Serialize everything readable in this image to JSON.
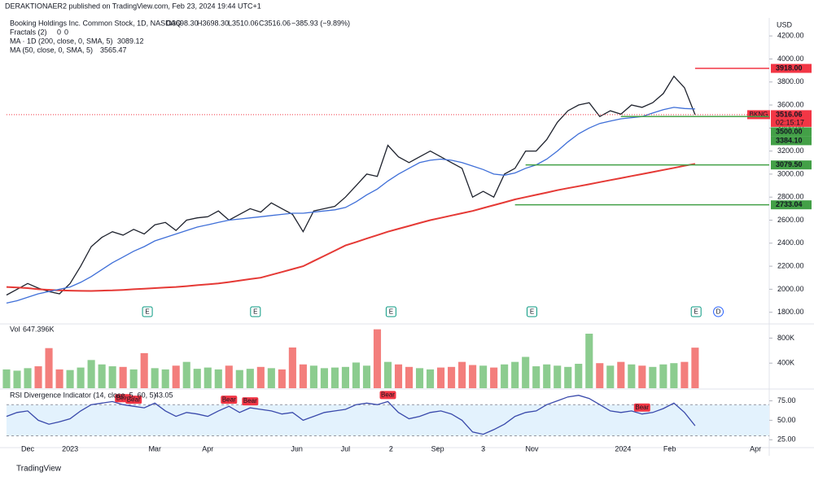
{
  "header": {
    "published": "DERAKTIONAER2 published on TradingView.com, Feb 23, 2024 19:44 UTC+1",
    "brand": "TradingView"
  },
  "chart_data": [
    {
      "type": "line",
      "title": "Booking Holdings Inc. Common Stock, 1D, NASDAQ",
      "quote": [
        "O3698.30",
        "H3698.30",
        "L3510.06",
        "C3516.06",
        "−385.93 (−9.89%)"
      ],
      "fractals": {
        "name": "Fractals (2)",
        "values": [
          0,
          0
        ]
      },
      "currency": "USD",
      "x": [
        0,
        1,
        2,
        3,
        4,
        5,
        6,
        7,
        8,
        9,
        10,
        11,
        12,
        13,
        14,
        15,
        16,
        17,
        18,
        19,
        20,
        21,
        22,
        23,
        24,
        25,
        26,
        27,
        28,
        29,
        30,
        31,
        32,
        33,
        34,
        35,
        36,
        37,
        38,
        39,
        40,
        41,
        42,
        43,
        44,
        45,
        46,
        47,
        48,
        49,
        50,
        51,
        52,
        53,
        54,
        55,
        56,
        57,
        58,
        59,
        60,
        61,
        62,
        63,
        64,
        65
      ],
      "series": [
        {
          "color": "#1e222d",
          "values": [
            1950,
            2000,
            2050,
            2010,
            1980,
            1960,
            2050,
            2200,
            2370,
            2450,
            2500,
            2470,
            2520,
            2480,
            2560,
            2580,
            2510,
            2600,
            2620,
            2630,
            2680,
            2600,
            2650,
            2700,
            2670,
            2750,
            2700,
            2650,
            2500,
            2680,
            2700,
            2720,
            2800,
            2900,
            3000,
            2980,
            3250,
            3150,
            3100,
            3150,
            3200,
            3150,
            3100,
            3050,
            2800,
            2850,
            2800,
            3000,
            3050,
            3200,
            3200,
            3300,
            3450,
            3550,
            3600,
            3620,
            3500,
            3550,
            3520,
            3600,
            3580,
            3620,
            3700,
            3850,
            3750,
            3516.06
          ]
        },
        {
          "name": "MA · 1D (200, close, 0, SMA, 5)",
          "last_label": "3089.12",
          "color": "#e53935",
          "values": [
            2020,
            2015,
            2010,
            2000,
            1995,
            1990,
            1988,
            1986,
            1985,
            1988,
            1990,
            1994,
            2000,
            2005,
            2010,
            2015,
            2020,
            2027,
            2035,
            2042,
            2050,
            2062,
            2075,
            2088,
            2100,
            2125,
            2150,
            2175,
            2200,
            2245,
            2290,
            2335,
            2380,
            2410,
            2440,
            2470,
            2500,
            2525,
            2550,
            2575,
            2600,
            2620,
            2640,
            2660,
            2680,
            2705,
            2730,
            2755,
            2780,
            2800,
            2820,
            2840,
            2860,
            2878,
            2895,
            2912,
            2930,
            2948,
            2965,
            2983,
            3000,
            3018,
            3036,
            3054,
            3072,
            3089.12
          ]
        },
        {
          "name": "MA (50, close, 0, SMA, 5)",
          "last_label": "3565.47",
          "color": "#3f6fd8",
          "values": [
            1880,
            1900,
            1930,
            1960,
            1980,
            2000,
            2020,
            2060,
            2110,
            2170,
            2230,
            2280,
            2330,
            2370,
            2420,
            2450,
            2480,
            2510,
            2540,
            2560,
            2580,
            2600,
            2610,
            2620,
            2630,
            2640,
            2650,
            2660,
            2660,
            2670,
            2680,
            2690,
            2710,
            2760,
            2820,
            2870,
            2940,
            3000,
            3050,
            3100,
            3120,
            3130,
            3120,
            3100,
            3070,
            3040,
            3000,
            2990,
            3010,
            3050,
            3080,
            3130,
            3200,
            3280,
            3350,
            3400,
            3440,
            3460,
            3480,
            3490,
            3500,
            3530,
            3560,
            3580,
            3570,
            3565.47
          ]
        }
      ],
      "xlim": [
        0,
        72
      ],
      "xticks": [
        {
          "value": 2,
          "label": "Dec"
        },
        {
          "value": 6,
          "label": "2023"
        },
        {
          "value": 14,
          "label": "Mar"
        },
        {
          "value": 19,
          "label": "Apr"
        },
        {
          "value": 27.4,
          "label": "Jun"
        },
        {
          "value": 32,
          "label": "Jul"
        },
        {
          "value": 36.3,
          "label": "2"
        },
        {
          "value": 40.7,
          "label": "Sep"
        },
        {
          "value": 45,
          "label": "3"
        },
        {
          "value": 49.6,
          "label": "Nov"
        },
        {
          "value": 58.2,
          "label": "2024"
        },
        {
          "value": 62.6,
          "label": "Feb"
        },
        {
          "value": 70.7,
          "label": "Apr"
        }
      ],
      "ylim": [
        1720,
        4300
      ],
      "yticks": [
        {
          "value": 1800,
          "label": "1800.00"
        },
        {
          "value": 2000,
          "label": "2000.00"
        },
        {
          "value": 2200,
          "label": "2200.00"
        },
        {
          "value": 2400,
          "label": "2400.00"
        },
        {
          "value": 2600,
          "label": "2600.00"
        },
        {
          "value": 2800,
          "label": "2800.00"
        },
        {
          "value": 3000,
          "label": "3000.00"
        },
        {
          "value": 3200,
          "label": "3200.00"
        },
        {
          "value": 3400,
          "label": "3400.00"
        },
        {
          "value": 3600,
          "label": "3600.00"
        },
        {
          "value": 3800,
          "label": "3800.00"
        },
        {
          "value": 4000,
          "label": "4000.00"
        },
        {
          "value": 4200,
          "label": "4200.00"
        }
      ],
      "levels": [
        {
          "value": 3918,
          "label": "3918.00",
          "color": "#f23645",
          "from": 65
        },
        {
          "value": 3516.06,
          "label": "3516.06",
          "color": "#f23645",
          "tag": "BKNG",
          "sub": "02:15:17"
        },
        {
          "value": 3500,
          "label": "3500.00",
          "color": "#43a047",
          "from": 58
        },
        {
          "value": 3384.1,
          "label": "3384.10",
          "color": "#43a047"
        },
        {
          "value": 3079.5,
          "label": "3079.50",
          "color": "#43a047",
          "from": 49
        },
        {
          "value": 2733.04,
          "label": "2733.04",
          "color": "#43a047",
          "from": 48
        }
      ],
      "events": [
        {
          "x": 13.3,
          "label": "E"
        },
        {
          "x": 23.5,
          "label": "E"
        },
        {
          "x": 36.3,
          "label": "E"
        },
        {
          "x": 49.6,
          "label": "E"
        },
        {
          "x": 65.1,
          "label": "E"
        },
        {
          "x": 67.2,
          "label": "D"
        }
      ]
    },
    {
      "type": "bar",
      "title": "Vol",
      "last_label": "647.396K",
      "up_color": "#66bb6a",
      "down_color": "#ef5350",
      "x": [
        0,
        1,
        2,
        3,
        4,
        5,
        6,
        7,
        8,
        9,
        10,
        11,
        12,
        13,
        14,
        15,
        16,
        17,
        18,
        19,
        20,
        21,
        22,
        23,
        24,
        25,
        26,
        27,
        28,
        29,
        30,
        31,
        32,
        33,
        34,
        35,
        36,
        37,
        38,
        39,
        40,
        41,
        42,
        43,
        44,
        45,
        46,
        47,
        48,
        49,
        50,
        51,
        52,
        53,
        54,
        55,
        56,
        57,
        58,
        59,
        60,
        61,
        62,
        63,
        64,
        65
      ],
      "values": [
        300000,
        280000,
        320000,
        350000,
        640000,
        300000,
        290000,
        330000,
        450000,
        380000,
        350000,
        340000,
        300000,
        560000,
        320000,
        300000,
        360000,
        420000,
        310000,
        330000,
        300000,
        360000,
        290000,
        310000,
        340000,
        320000,
        300000,
        650000,
        380000,
        360000,
        320000,
        330000,
        340000,
        410000,
        360000,
        940000,
        420000,
        380000,
        340000,
        320000,
        300000,
        330000,
        340000,
        420000,
        370000,
        360000,
        330000,
        380000,
        420000,
        500000,
        350000,
        380000,
        360000,
        340000,
        390000,
        870000,
        400000,
        360000,
        420000,
        380000,
        360000,
        340000,
        380000,
        400000,
        420000,
        647396
      ],
      "xlim": [
        0,
        72
      ],
      "ylim": [
        0,
        1000000
      ],
      "yticks": [
        {
          "value": 400000,
          "label": "400K"
        },
        {
          "value": 800000,
          "label": "800K"
        }
      ]
    },
    {
      "type": "line",
      "title": "RSI Divergence Indicator (14, close, 5, 60, 5)",
      "last_label": "43.05",
      "color": "#3949ab",
      "x": [
        0,
        1,
        2,
        3,
        4,
        5,
        6,
        7,
        8,
        9,
        10,
        11,
        12,
        13,
        14,
        15,
        16,
        17,
        18,
        19,
        20,
        21,
        22,
        23,
        24,
        25,
        26,
        27,
        28,
        29,
        30,
        31,
        32,
        33,
        34,
        35,
        36,
        37,
        38,
        39,
        40,
        41,
        42,
        43,
        44,
        45,
        46,
        47,
        48,
        49,
        50,
        51,
        52,
        53,
        54,
        55,
        56,
        57,
        58,
        59,
        60,
        61,
        62,
        63,
        64,
        65
      ],
      "values": [
        55,
        60,
        62,
        50,
        45,
        48,
        52,
        62,
        70,
        72,
        74,
        70,
        68,
        66,
        72,
        62,
        55,
        60,
        58,
        55,
        62,
        68,
        60,
        66,
        64,
        62,
        58,
        60,
        50,
        55,
        60,
        62,
        64,
        70,
        72,
        70,
        74,
        60,
        52,
        55,
        60,
        62,
        58,
        50,
        35,
        32,
        38,
        45,
        55,
        60,
        62,
        70,
        75,
        80,
        82,
        78,
        70,
        62,
        60,
        62,
        58,
        60,
        65,
        72,
        60,
        43.05
      ],
      "band": [
        30,
        70
      ],
      "band_color": "#e3f2fd",
      "xlim": [
        0,
        72
      ],
      "ylim": [
        17,
        88
      ],
      "yticks": [
        {
          "value": 25,
          "label": "25.00"
        },
        {
          "value": 50,
          "label": "50.00"
        },
        {
          "value": 75,
          "label": "75.00"
        }
      ],
      "annotations": [
        {
          "x": 11,
          "label": "Bear"
        },
        {
          "x": 12,
          "label": "Bear"
        },
        {
          "x": 21,
          "label": "Bear"
        },
        {
          "x": 23,
          "label": "Bear"
        },
        {
          "x": 36,
          "label": "Bear"
        },
        {
          "x": 60,
          "label": "Bear"
        }
      ]
    }
  ]
}
